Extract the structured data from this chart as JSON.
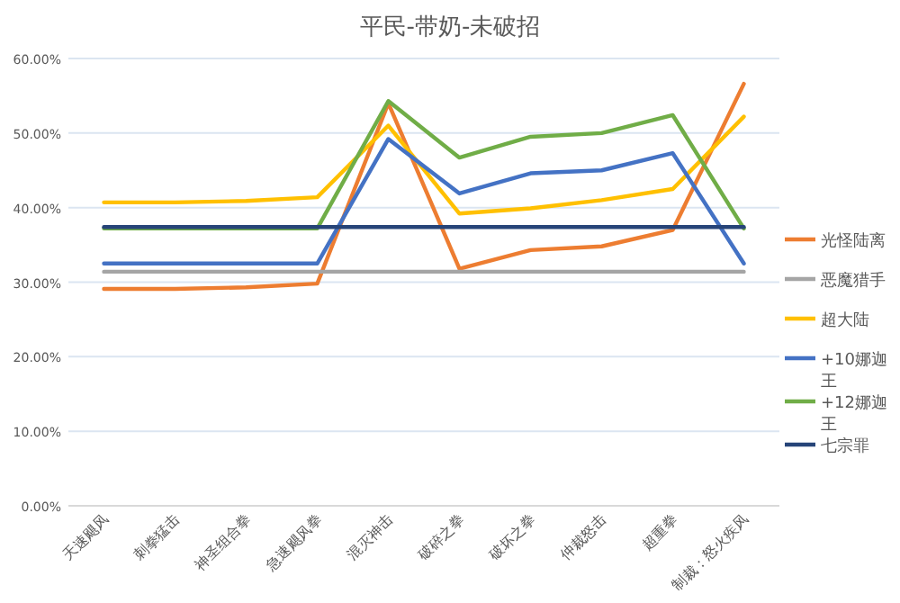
{
  "chart_data": {
    "type": "line",
    "title": "平民-带奶-未破招",
    "categories": [
      "天速飓风",
      "刺拳猛击",
      "神圣组合拳",
      "急速飓风拳",
      "混灭神击",
      "破碎之拳",
      "破坏之拳",
      "仲裁怒击",
      "超重拳",
      "制裁：怒火疾风"
    ],
    "series": [
      {
        "name": "光怪陆离",
        "color": "#ed7d31",
        "values": [
          29.1,
          29.1,
          29.3,
          29.8,
          54.0,
          31.8,
          34.3,
          34.8,
          37.0,
          56.6
        ]
      },
      {
        "name": "恶魔猎手",
        "color": "#a5a5a5",
        "values": [
          31.4,
          31.4,
          31.4,
          31.4,
          31.4,
          31.4,
          31.4,
          31.4,
          31.4,
          31.4
        ]
      },
      {
        "name": "超大陆",
        "color": "#ffc000",
        "values": [
          40.7,
          40.7,
          40.9,
          41.4,
          51.0,
          39.2,
          39.9,
          41.0,
          42.5,
          52.2
        ]
      },
      {
        "name": "+10娜迦王",
        "color": "#4472c4",
        "values": [
          32.5,
          32.5,
          32.5,
          32.5,
          49.2,
          41.9,
          44.6,
          45.0,
          47.3,
          32.5
        ]
      },
      {
        "name": "+12娜迦王",
        "color": "#70ad47",
        "values": [
          37.2,
          37.2,
          37.2,
          37.2,
          54.3,
          46.7,
          49.5,
          50.0,
          52.4,
          37.2
        ]
      },
      {
        "name": "七宗罪",
        "color": "#264478",
        "values": [
          37.4,
          37.4,
          37.4,
          37.4,
          37.4,
          37.4,
          37.4,
          37.4,
          37.4,
          37.4
        ]
      }
    ],
    "ylim": [
      0,
      60
    ],
    "yticks": [
      {
        "value": 0,
        "label": "0.00%"
      },
      {
        "value": 10,
        "label": "10.00%"
      },
      {
        "value": 20,
        "label": "20.00%"
      },
      {
        "value": 30,
        "label": "30.00%"
      },
      {
        "value": 40,
        "label": "40.00%"
      },
      {
        "value": 50,
        "label": "50.00%"
      },
      {
        "value": 60,
        "label": "60.00%"
      }
    ],
    "grid": "y",
    "legend": "right",
    "marker": "none",
    "line_style": "solid"
  }
}
